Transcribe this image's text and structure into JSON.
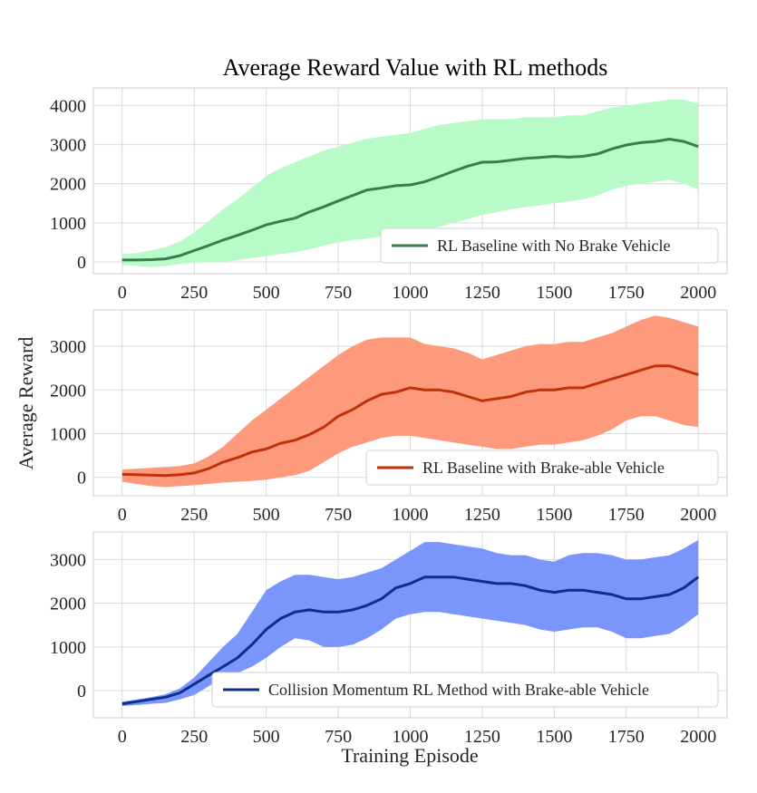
{
  "chart_data": {
    "title": "Average Reward Value with RL methods",
    "xlabel": "Training Episode",
    "ylabel": "Average Reward",
    "type": "line",
    "panels": [
      {
        "type": "line",
        "legend": "RL Baseline with No Brake Vehicle",
        "legend_position": "lower-right",
        "line_color": "#3a7d4a",
        "band_color": "#b9fbc8",
        "xlim": [
          -100,
          2100
        ],
        "ylim": [
          -300,
          4450
        ],
        "xticks": [
          0,
          250,
          500,
          750,
          1000,
          1250,
          1500,
          1750,
          2000
        ],
        "yticks": [
          0,
          1000,
          2000,
          3000,
          4000
        ],
        "x": [
          0,
          50,
          100,
          150,
          200,
          250,
          300,
          350,
          400,
          450,
          500,
          550,
          600,
          650,
          700,
          750,
          800,
          850,
          900,
          950,
          1000,
          1050,
          1100,
          1150,
          1200,
          1250,
          1300,
          1350,
          1400,
          1450,
          1500,
          1550,
          1600,
          1650,
          1700,
          1750,
          1800,
          1850,
          1900,
          1950,
          2000
        ],
        "mean": [
          50,
          50,
          60,
          80,
          160,
          290,
          420,
          560,
          680,
          810,
          950,
          1040,
          1120,
          1280,
          1410,
          1560,
          1700,
          1840,
          1890,
          1950,
          1970,
          2050,
          2180,
          2320,
          2450,
          2550,
          2560,
          2600,
          2650,
          2670,
          2700,
          2680,
          2700,
          2760,
          2890,
          2990,
          3050,
          3080,
          3140,
          3080,
          2950
        ],
        "upper": [
          200,
          230,
          300,
          380,
          520,
          760,
          1050,
          1350,
          1600,
          1900,
          2200,
          2400,
          2550,
          2700,
          2850,
          2950,
          3050,
          3150,
          3200,
          3250,
          3300,
          3400,
          3500,
          3550,
          3600,
          3650,
          3650,
          3650,
          3700,
          3700,
          3700,
          3750,
          3750,
          3850,
          3950,
          4000,
          4050,
          4100,
          4150,
          4150,
          4050
        ],
        "lower": [
          -80,
          -100,
          -130,
          -100,
          -50,
          -20,
          -10,
          0,
          50,
          100,
          150,
          200,
          250,
          320,
          420,
          500,
          560,
          600,
          650,
          700,
          720,
          800,
          900,
          1000,
          1100,
          1200,
          1270,
          1350,
          1400,
          1450,
          1500,
          1550,
          1600,
          1700,
          1850,
          1950,
          2000,
          2050,
          2100,
          2000,
          1850
        ]
      },
      {
        "type": "line",
        "legend": "RL Baseline with Brake-able Vehicle",
        "legend_position": "lower-right",
        "line_color": "#c0320c",
        "band_color": "#fc9a7b",
        "xlim": [
          -100,
          2100
        ],
        "ylim": [
          -420,
          3830
        ],
        "xticks": [
          0,
          250,
          500,
          750,
          1000,
          1250,
          1500,
          1750,
          2000
        ],
        "yticks": [
          0,
          1000,
          2000,
          3000
        ],
        "x": [
          0,
          50,
          100,
          150,
          200,
          250,
          300,
          350,
          400,
          450,
          500,
          550,
          600,
          650,
          700,
          750,
          800,
          850,
          900,
          950,
          1000,
          1050,
          1100,
          1150,
          1200,
          1250,
          1300,
          1350,
          1400,
          1450,
          1500,
          1550,
          1600,
          1650,
          1700,
          1750,
          1800,
          1850,
          1900,
          1950,
          2000
        ],
        "mean": [
          70,
          60,
          50,
          40,
          60,
          100,
          200,
          350,
          450,
          580,
          650,
          780,
          850,
          980,
          1150,
          1400,
          1550,
          1750,
          1900,
          1950,
          2050,
          2000,
          2000,
          1950,
          1850,
          1750,
          1800,
          1850,
          1950,
          2000,
          2000,
          2050,
          2050,
          2150,
          2250,
          2350,
          2450,
          2550,
          2550,
          2450,
          2350
        ],
        "upper": [
          180,
          200,
          220,
          240,
          260,
          320,
          480,
          700,
          1000,
          1300,
          1550,
          1800,
          2050,
          2300,
          2550,
          2800,
          3000,
          3150,
          3200,
          3200,
          3200,
          3050,
          3000,
          2950,
          2850,
          2700,
          2800,
          2900,
          3000,
          3050,
          3050,
          3100,
          3100,
          3200,
          3300,
          3450,
          3600,
          3700,
          3650,
          3550,
          3450
        ],
        "lower": [
          -100,
          -150,
          -200,
          -220,
          -200,
          -180,
          -150,
          -120,
          -100,
          -80,
          -50,
          0,
          50,
          150,
          350,
          550,
          700,
          800,
          900,
          950,
          950,
          900,
          850,
          800,
          750,
          700,
          650,
          650,
          700,
          750,
          750,
          800,
          850,
          950,
          1100,
          1300,
          1400,
          1400,
          1300,
          1200,
          1150
        ]
      },
      {
        "type": "line",
        "legend": "Collision Momentum RL Method with Brake-able Vehicle",
        "legend_position": "lower-right",
        "line_color": "#0d2f8a",
        "band_color": "#7a96fc",
        "xlim": [
          -100,
          2100
        ],
        "ylim": [
          -620,
          3630
        ],
        "xticks": [
          0,
          250,
          500,
          750,
          1000,
          1250,
          1500,
          1750,
          2000
        ],
        "yticks": [
          0,
          1000,
          2000,
          3000
        ],
        "x": [
          0,
          50,
          100,
          150,
          200,
          250,
          300,
          350,
          400,
          450,
          500,
          550,
          600,
          650,
          700,
          750,
          800,
          850,
          900,
          950,
          1000,
          1050,
          1100,
          1150,
          1200,
          1250,
          1300,
          1350,
          1400,
          1450,
          1500,
          1550,
          1600,
          1650,
          1700,
          1750,
          1800,
          1850,
          1900,
          1950,
          2000
        ],
        "mean": [
          -300,
          -250,
          -200,
          -150,
          -50,
          150,
          350,
          550,
          750,
          1050,
          1400,
          1650,
          1800,
          1850,
          1800,
          1800,
          1850,
          1950,
          2100,
          2350,
          2450,
          2600,
          2600,
          2600,
          2550,
          2500,
          2450,
          2450,
          2400,
          2300,
          2250,
          2300,
          2300,
          2250,
          2200,
          2100,
          2100,
          2150,
          2200,
          2350,
          2600
        ],
        "upper": [
          -250,
          -200,
          -150,
          -80,
          50,
          300,
          650,
          1000,
          1300,
          1800,
          2300,
          2500,
          2650,
          2650,
          2600,
          2550,
          2600,
          2700,
          2800,
          3000,
          3200,
          3400,
          3400,
          3350,
          3300,
          3250,
          3150,
          3100,
          3100,
          3000,
          2950,
          3100,
          3150,
          3150,
          3100,
          3000,
          3000,
          3050,
          3100,
          3250,
          3450
        ],
        "lower": [
          -350,
          -330,
          -300,
          -280,
          -200,
          -100,
          100,
          300,
          400,
          550,
          750,
          1000,
          1200,
          1150,
          1000,
          1000,
          1050,
          1200,
          1400,
          1650,
          1750,
          1800,
          1800,
          1750,
          1700,
          1650,
          1600,
          1550,
          1500,
          1400,
          1350,
          1400,
          1450,
          1450,
          1350,
          1200,
          1200,
          1250,
          1300,
          1500,
          1750
        ]
      }
    ]
  }
}
